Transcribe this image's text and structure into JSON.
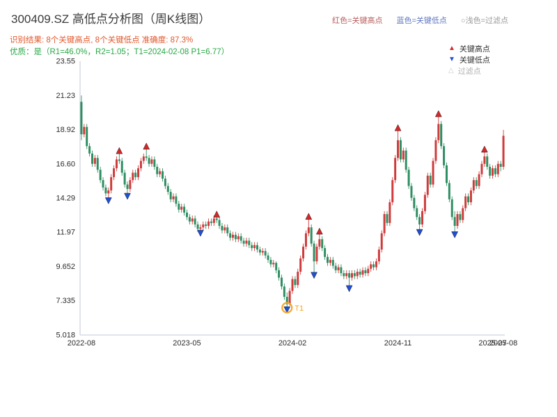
{
  "header": {
    "title": "300409.SZ 高低点分析图（周K线图）",
    "legend_high": "红色=关键高点",
    "legend_low": "蓝色=关键低点",
    "legend_filter": "○浅色=过滤点",
    "result_line": "识别结果: 8个关键高点, 8个关键低点  准确度: 87.3%",
    "quality_line": "优质：是（R1=46.0%，R2=1.05；T1=2024-02-08 P1=6.77）"
  },
  "plot_legend": {
    "high": "关键高点",
    "low": "关键低点",
    "filter": "过滤点"
  },
  "chart_data": {
    "type": "candlestick",
    "symbol": "300409.SZ",
    "timeframe": "weekly",
    "title": "300409.SZ 高低点分析图（周K线图）",
    "ylim": [
      5.018,
      23.55
    ],
    "yticks": [
      "23.55",
      "21.23",
      "18.92",
      "16.60",
      "14.29",
      "11.97",
      "9.652",
      "7.335",
      "5.018"
    ],
    "ytick_values": [
      23.55,
      21.23,
      18.92,
      16.6,
      14.29,
      11.97,
      9.652,
      7.335,
      5.018
    ],
    "xticks": [
      {
        "index": 0,
        "label": "2022-08"
      },
      {
        "index": 39,
        "label": "2023-05"
      },
      {
        "index": 78,
        "label": "2024-02"
      },
      {
        "index": 117,
        "label": "2024-11"
      },
      {
        "index": 152,
        "label": "2025-07"
      },
      {
        "index": 156,
        "label": "2025-08"
      }
    ],
    "candles": [
      [
        20.8,
        21.23,
        18.2,
        18.6
      ],
      [
        18.6,
        19.3,
        18.4,
        19.1
      ],
      [
        19.1,
        19.3,
        17.6,
        17.8
      ],
      [
        17.8,
        18.0,
        17.1,
        17.3
      ],
      [
        17.3,
        17.5,
        16.4,
        16.6
      ],
      [
        16.6,
        17.2,
        16.4,
        17.0
      ],
      [
        17.0,
        17.2,
        16.0,
        16.2
      ],
      [
        16.2,
        16.4,
        15.3,
        15.5
      ],
      [
        15.5,
        15.7,
        14.8,
        15.0
      ],
      [
        15.0,
        15.2,
        14.4,
        14.6
      ],
      [
        14.6,
        15.0,
        14.15,
        14.8
      ],
      [
        14.8,
        15.9,
        14.6,
        15.7
      ],
      [
        15.7,
        16.5,
        15.5,
        16.3
      ],
      [
        16.3,
        17.1,
        16.1,
        16.9
      ],
      [
        16.9,
        17.45,
        16.6,
        16.8
      ],
      [
        16.8,
        17.0,
        15.8,
        16.0
      ],
      [
        16.0,
        16.2,
        15.0,
        15.2
      ],
      [
        15.2,
        15.4,
        14.45,
        14.9
      ],
      [
        14.9,
        15.7,
        14.7,
        15.5
      ],
      [
        15.5,
        16.2,
        15.3,
        16.0
      ],
      [
        16.0,
        16.2,
        15.5,
        15.7
      ],
      [
        15.7,
        16.5,
        15.5,
        16.3
      ],
      [
        16.3,
        17.0,
        16.1,
        16.8
      ],
      [
        16.8,
        17.3,
        16.6,
        17.1
      ],
      [
        17.1,
        17.75,
        16.8,
        17.0
      ],
      [
        17.0,
        17.2,
        16.4,
        16.6
      ],
      [
        16.6,
        17.1,
        16.4,
        16.9
      ],
      [
        16.9,
        17.1,
        16.2,
        16.4
      ],
      [
        16.4,
        16.6,
        15.7,
        15.9
      ],
      [
        15.9,
        16.3,
        15.7,
        16.1
      ],
      [
        16.1,
        16.3,
        15.4,
        15.6
      ],
      [
        15.6,
        15.8,
        14.9,
        15.1
      ],
      [
        15.1,
        15.3,
        14.5,
        14.7
      ],
      [
        14.7,
        14.9,
        14.0,
        14.2
      ],
      [
        14.2,
        14.6,
        14.0,
        14.4
      ],
      [
        14.4,
        14.6,
        13.7,
        13.9
      ],
      [
        13.9,
        14.1,
        13.3,
        13.5
      ],
      [
        13.5,
        13.9,
        13.3,
        13.7
      ],
      [
        13.7,
        13.9,
        13.1,
        13.3
      ],
      [
        13.3,
        13.5,
        12.8,
        13.0
      ],
      [
        13.0,
        13.2,
        12.5,
        12.7
      ],
      [
        12.7,
        13.1,
        12.5,
        12.9
      ],
      [
        12.9,
        13.1,
        12.3,
        12.5
      ],
      [
        12.5,
        12.7,
        12.0,
        12.2
      ],
      [
        12.2,
        12.5,
        11.95,
        12.3
      ],
      [
        12.3,
        12.7,
        12.1,
        12.5
      ],
      [
        12.5,
        12.7,
        12.2,
        12.4
      ],
      [
        12.4,
        12.9,
        12.2,
        12.7
      ],
      [
        12.7,
        12.9,
        12.4,
        12.6
      ],
      [
        12.6,
        13.1,
        12.4,
        12.9
      ],
      [
        12.9,
        13.15,
        12.6,
        12.8
      ],
      [
        12.8,
        13.0,
        12.2,
        12.4
      ],
      [
        12.4,
        12.6,
        11.9,
        12.1
      ],
      [
        12.1,
        12.5,
        11.9,
        12.3
      ],
      [
        12.3,
        12.5,
        11.7,
        11.9
      ],
      [
        11.9,
        12.1,
        11.4,
        11.6
      ],
      [
        11.6,
        12.0,
        11.4,
        11.8
      ],
      [
        11.8,
        12.0,
        11.3,
        11.5
      ],
      [
        11.5,
        11.9,
        11.3,
        11.7
      ],
      [
        11.7,
        11.9,
        11.2,
        11.4
      ],
      [
        11.4,
        11.6,
        11.0,
        11.2
      ],
      [
        11.2,
        11.6,
        11.0,
        11.4
      ],
      [
        11.4,
        11.6,
        10.9,
        11.1
      ],
      [
        11.1,
        11.3,
        10.7,
        10.9
      ],
      [
        10.9,
        11.3,
        10.7,
        11.1
      ],
      [
        11.1,
        11.3,
        10.6,
        10.8
      ],
      [
        10.8,
        11.0,
        10.4,
        10.6
      ],
      [
        10.6,
        10.9,
        10.4,
        10.7
      ],
      [
        10.7,
        10.9,
        10.2,
        10.4
      ],
      [
        10.4,
        10.6,
        9.9,
        10.1
      ],
      [
        10.1,
        10.3,
        9.6,
        9.8
      ],
      [
        9.8,
        10.1,
        9.6,
        9.9
      ],
      [
        9.9,
        10.0,
        9.2,
        9.4
      ],
      [
        9.4,
        9.6,
        8.7,
        8.9
      ],
      [
        8.9,
        9.1,
        8.1,
        8.3
      ],
      [
        8.3,
        8.5,
        7.4,
        7.6
      ],
      [
        7.6,
        7.9,
        6.77,
        7.1
      ],
      [
        7.1,
        8.2,
        7.0,
        8.0
      ],
      [
        8.0,
        9.0,
        7.8,
        8.8
      ],
      [
        8.8,
        9.0,
        8.2,
        8.4
      ],
      [
        8.4,
        9.5,
        8.2,
        9.3
      ],
      [
        9.3,
        10.4,
        9.1,
        10.2
      ],
      [
        10.2,
        11.2,
        10.0,
        11.0
      ],
      [
        11.0,
        12.1,
        10.8,
        11.9
      ],
      [
        11.9,
        13.0,
        11.7,
        12.3
      ],
      [
        12.3,
        12.5,
        11.0,
        11.2
      ],
      [
        11.2,
        11.4,
        9.1,
        10.0
      ],
      [
        10.0,
        11.2,
        9.8,
        11.0
      ],
      [
        11.0,
        12.0,
        10.8,
        11.5
      ],
      [
        11.5,
        11.7,
        10.7,
        10.9
      ],
      [
        10.9,
        11.1,
        10.1,
        10.3
      ],
      [
        10.3,
        10.5,
        9.7,
        9.9
      ],
      [
        9.9,
        10.3,
        9.7,
        10.1
      ],
      [
        10.1,
        10.3,
        9.5,
        9.7
      ],
      [
        9.7,
        9.9,
        9.2,
        9.4
      ],
      [
        9.4,
        9.8,
        9.2,
        9.6
      ],
      [
        9.6,
        9.8,
        9.0,
        9.2
      ],
      [
        9.2,
        9.4,
        8.8,
        9.0
      ],
      [
        9.0,
        9.4,
        8.8,
        9.2
      ],
      [
        9.2,
        9.4,
        8.2,
        8.9
      ],
      [
        8.9,
        9.4,
        8.7,
        9.2
      ],
      [
        9.2,
        9.4,
        8.8,
        9.0
      ],
      [
        9.0,
        9.5,
        8.8,
        9.3
      ],
      [
        9.3,
        9.5,
        8.9,
        9.1
      ],
      [
        9.1,
        9.6,
        8.9,
        9.4
      ],
      [
        9.4,
        9.6,
        9.0,
        9.2
      ],
      [
        9.2,
        9.7,
        9.0,
        9.5
      ],
      [
        9.5,
        10.0,
        9.3,
        9.8
      ],
      [
        9.8,
        10.0,
        9.4,
        9.6
      ],
      [
        9.6,
        10.2,
        9.4,
        10.0
      ],
      [
        10.0,
        11.0,
        9.8,
        10.8
      ],
      [
        10.8,
        12.1,
        10.6,
        11.9
      ],
      [
        11.9,
        13.4,
        11.7,
        13.2
      ],
      [
        13.2,
        13.4,
        12.4,
        12.6
      ],
      [
        12.6,
        14.2,
        12.4,
        14.0
      ],
      [
        14.0,
        15.7,
        13.8,
        15.5
      ],
      [
        15.5,
        17.2,
        15.3,
        17.0
      ],
      [
        17.0,
        19.0,
        16.8,
        18.2
      ],
      [
        18.2,
        18.4,
        16.7,
        16.9
      ],
      [
        16.9,
        17.7,
        16.7,
        17.5
      ],
      [
        17.5,
        17.7,
        16.0,
        16.2
      ],
      [
        16.2,
        16.4,
        14.9,
        15.1
      ],
      [
        15.1,
        15.3,
        14.1,
        14.3
      ],
      [
        14.3,
        14.5,
        13.4,
        13.6
      ],
      [
        13.6,
        13.8,
        12.8,
        13.0
      ],
      [
        13.0,
        13.2,
        12.0,
        12.5
      ],
      [
        12.5,
        13.6,
        12.3,
        13.4
      ],
      [
        13.4,
        14.7,
        13.2,
        14.5
      ],
      [
        14.5,
        16.0,
        14.3,
        15.8
      ],
      [
        15.8,
        16.0,
        15.0,
        15.2
      ],
      [
        15.2,
        17.0,
        15.0,
        16.8
      ],
      [
        16.8,
        18.4,
        16.6,
        18.2
      ],
      [
        18.2,
        19.95,
        18.0,
        19.3
      ],
      [
        19.3,
        19.5,
        17.6,
        17.8
      ],
      [
        17.8,
        18.0,
        16.3,
        16.5
      ],
      [
        16.5,
        16.7,
        15.1,
        15.3
      ],
      [
        15.3,
        15.5,
        14.0,
        14.2
      ],
      [
        14.2,
        14.4,
        12.8,
        13.0
      ],
      [
        13.0,
        13.4,
        11.85,
        12.4
      ],
      [
        12.4,
        13.4,
        12.2,
        13.2
      ],
      [
        13.2,
        13.4,
        12.6,
        12.8
      ],
      [
        12.8,
        13.8,
        12.6,
        13.6
      ],
      [
        13.6,
        14.6,
        13.4,
        14.4
      ],
      [
        14.4,
        14.6,
        13.8,
        14.0
      ],
      [
        14.0,
        15.0,
        13.8,
        14.8
      ],
      [
        14.8,
        15.7,
        14.6,
        15.5
      ],
      [
        15.5,
        15.7,
        14.9,
        15.1
      ],
      [
        15.1,
        16.1,
        14.9,
        15.9
      ],
      [
        15.9,
        16.8,
        15.7,
        16.6
      ],
      [
        16.6,
        17.55,
        16.4,
        17.1
      ],
      [
        17.1,
        17.3,
        16.2,
        16.4
      ],
      [
        16.4,
        16.6,
        15.6,
        15.8
      ],
      [
        15.8,
        16.5,
        15.6,
        16.3
      ],
      [
        16.3,
        16.5,
        15.7,
        15.9
      ],
      [
        15.9,
        16.8,
        15.7,
        16.6
      ],
      [
        16.6,
        16.8,
        16.1,
        16.4
      ],
      [
        16.4,
        18.9,
        16.2,
        18.5
      ]
    ],
    "key_highs": [
      {
        "index": 14,
        "price": 17.45
      },
      {
        "index": 24,
        "price": 17.75
      },
      {
        "index": 50,
        "price": 13.15
      },
      {
        "index": 84,
        "price": 13.0
      },
      {
        "index": 88,
        "price": 12.0
      },
      {
        "index": 117,
        "price": 19.0
      },
      {
        "index": 132,
        "price": 19.95
      },
      {
        "index": 149,
        "price": 17.55
      }
    ],
    "key_lows": [
      {
        "index": 10,
        "price": 14.15
      },
      {
        "index": 17,
        "price": 14.45
      },
      {
        "index": 44,
        "price": 11.95
      },
      {
        "index": 76,
        "price": 6.77
      },
      {
        "index": 86,
        "price": 9.1
      },
      {
        "index": 99,
        "price": 8.2
      },
      {
        "index": 125,
        "price": 12.0
      },
      {
        "index": 138,
        "price": 11.85
      }
    ],
    "t1": {
      "index": 76,
      "price": 6.77,
      "label": "T1",
      "date": "2024-02-08"
    },
    "colors": {
      "up": "#cf3b3b",
      "down": "#2f8e62",
      "key_high": "#d62728",
      "key_low": "#1f4fd6",
      "t1": "#f5a623",
      "axis": "#c2c7d6",
      "text": "#2b2b2b"
    },
    "legend_position": "upper-right",
    "grid": false
  }
}
